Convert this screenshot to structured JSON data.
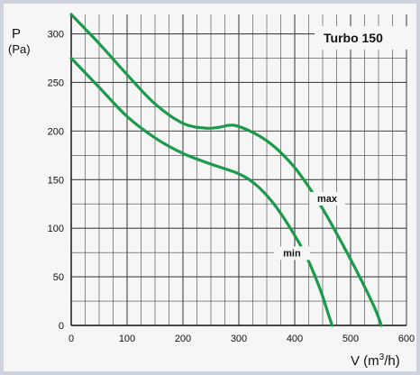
{
  "chart_data": {
    "type": "line",
    "title": "Turbo 150",
    "xlabel": "V (m³/h)",
    "ylabel": "P",
    "ylabel_unit": "(Pa)",
    "xlim": [
      0,
      600
    ],
    "ylim": [
      0,
      320
    ],
    "x_ticks": [
      0,
      100,
      200,
      300,
      400,
      500,
      600
    ],
    "y_ticks": [
      0,
      50,
      100,
      150,
      200,
      250,
      300
    ],
    "grid": true,
    "colors": {
      "series": "#1a9a4a",
      "grid": "#444444",
      "background": "#f6f6f6"
    },
    "series": [
      {
        "name": "max",
        "x": [
          0,
          50,
          100,
          150,
          200,
          240,
          265,
          290,
          320,
          350,
          380,
          410,
          450,
          500,
          540,
          555
        ],
        "y": [
          320,
          290,
          258,
          228,
          208,
          203,
          204,
          206,
          200,
          190,
          175,
          155,
          120,
          68,
          22,
          0
        ]
      },
      {
        "name": "min",
        "x": [
          0,
          50,
          100,
          150,
          200,
          250,
          300,
          330,
          360,
          390,
          420,
          445,
          460,
          467
        ],
        "y": [
          275,
          245,
          215,
          193,
          177,
          166,
          156,
          145,
          127,
          102,
          72,
          38,
          12,
          0
        ]
      }
    ],
    "annotations": [
      "max",
      "min"
    ]
  }
}
